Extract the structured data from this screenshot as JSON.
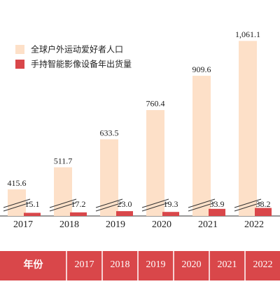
{
  "chart_data": {
    "type": "bar",
    "categories": [
      "2017",
      "2018",
      "2019",
      "2020",
      "2021",
      "2022"
    ],
    "series": [
      {
        "name": "全球户外运动爱好者人口",
        "color": "#fde0c8",
        "values": [
          415.6,
          511.7,
          633.5,
          760.4,
          909.6,
          1061.1
        ],
        "value_labels": [
          "415.6",
          "511.7",
          "633.5",
          "760.4",
          "909.6",
          "1,061.1"
        ]
      },
      {
        "name": "手持智能影像设备年出货量",
        "color": "#d9474a",
        "values": [
          15.1,
          17.2,
          23.0,
          19.3,
          33.9,
          38.2
        ],
        "value_labels": [
          "15.1",
          "17.2",
          "23.0",
          "19.3",
          "33.9",
          "38.2"
        ]
      }
    ]
  },
  "table": {
    "header": [
      "年份",
      "2017",
      "2018",
      "2019",
      "2020",
      "2021",
      "2022"
    ]
  }
}
